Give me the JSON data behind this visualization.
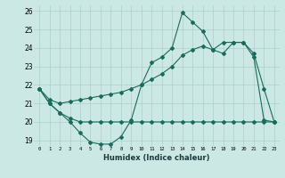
{
  "xlabel": "Humidex (Indice chaleur)",
  "ylabel": "",
  "background_color": "#cce8e5",
  "grid_color": "#aad0cc",
  "line_color": "#1a6b5a",
  "xlim": [
    -0.5,
    23.5
  ],
  "ylim": [
    18.7,
    26.3
  ],
  "yticks": [
    19,
    20,
    21,
    22,
    23,
    24,
    25,
    26
  ],
  "xticks": [
    0,
    1,
    2,
    3,
    4,
    5,
    6,
    7,
    8,
    9,
    10,
    11,
    12,
    13,
    14,
    15,
    16,
    17,
    18,
    19,
    20,
    21,
    22,
    23
  ],
  "series1": [
    21.8,
    21.0,
    20.5,
    20.0,
    19.4,
    18.9,
    18.8,
    18.8,
    19.2,
    20.1,
    22.0,
    23.2,
    23.5,
    24.0,
    25.9,
    25.4,
    24.9,
    23.9,
    23.7,
    24.3,
    24.3,
    23.5,
    20.1,
    20.0
  ],
  "series2": [
    21.8,
    21.0,
    20.5,
    20.2,
    20.0,
    20.0,
    20.0,
    20.0,
    20.0,
    20.0,
    20.0,
    20.0,
    20.0,
    20.0,
    20.0,
    20.0,
    20.0,
    20.0,
    20.0,
    20.0,
    20.0,
    20.0,
    20.0,
    20.0
  ],
  "series3": [
    21.8,
    21.2,
    21.0,
    21.1,
    21.2,
    21.3,
    21.4,
    21.5,
    21.6,
    21.8,
    22.0,
    22.3,
    22.6,
    23.0,
    23.6,
    23.9,
    24.1,
    23.9,
    24.3,
    24.3,
    24.3,
    23.7,
    21.8,
    20.0
  ]
}
